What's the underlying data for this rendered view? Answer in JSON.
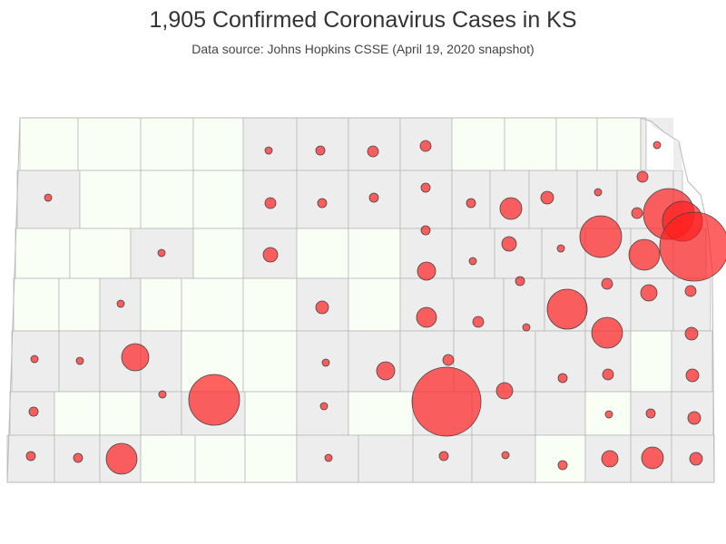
{
  "title": "1,905 Confirmed Coronavirus Cases in KS",
  "subtitle": "Data source: Johns Hopkins CSSE (April 19, 2020 snapshot)",
  "colors": {
    "county_with_cases": "#ededed",
    "county_without_cases": "#f9fff5",
    "border": "#b9b9b9",
    "bubble_fill": "#ff2020",
    "bubble_stroke": "#444444"
  }
}
